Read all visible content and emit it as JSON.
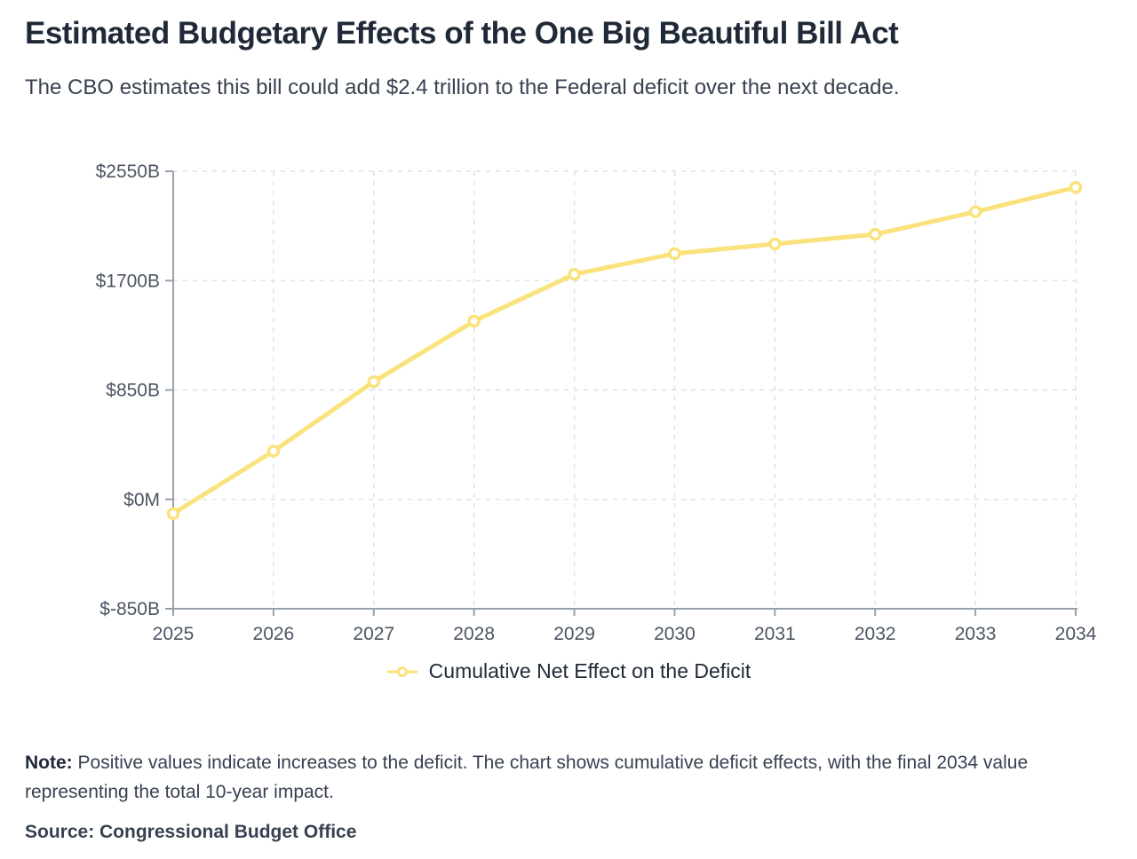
{
  "page": {
    "title": "Estimated Budgetary Effects of the One Big Beautiful Bill Act",
    "subtitle": "The CBO estimates this bill could add $2.4 trillion to the Federal deficit over the next decade.",
    "note_label": "Note:",
    "note_text": " Positive values indicate increases to the deficit. The chart shows cumulative deficit effects, with the final 2034 value representing the total 10-year impact.",
    "source": "Source: Congressional Budget Office"
  },
  "chart_data": {
    "type": "line",
    "title": "Estimated Budgetary Effects of the One Big Beautiful Bill Act",
    "subtitle": "The CBO estimates this bill could add $2.4 trillion to the Federal deficit over the next decade.",
    "x": [
      2025,
      2026,
      2027,
      2028,
      2029,
      2030,
      2031,
      2032,
      2033,
      2034
    ],
    "series": [
      {
        "name": "Cumulative Net Effect on the Deficit",
        "color": "#FAE27C",
        "values": [
          -110,
          375,
          915,
          1385,
          1750,
          1910,
          1985,
          2060,
          2235,
          2425
        ]
      }
    ],
    "y_ticks": [
      {
        "value": 2550,
        "label": "$2550B"
      },
      {
        "value": 1700,
        "label": "$1700B"
      },
      {
        "value": 850,
        "label": "$850B"
      },
      {
        "value": 0,
        "label": "$0M"
      },
      {
        "value": -850,
        "label": "$-850B"
      }
    ],
    "ylim": [
      -850,
      2550
    ],
    "xlabel": "",
    "ylabel": "",
    "grid": true,
    "legend_position": "bottom"
  },
  "colors": {
    "line": "#FAE27C",
    "marker_fill": "#FFFFFF",
    "gridline": "#DDE1E6",
    "axis": "#98A1AB",
    "title_text": "#1F2937",
    "body_text": "#374151",
    "tick_text": "#4B5563"
  }
}
